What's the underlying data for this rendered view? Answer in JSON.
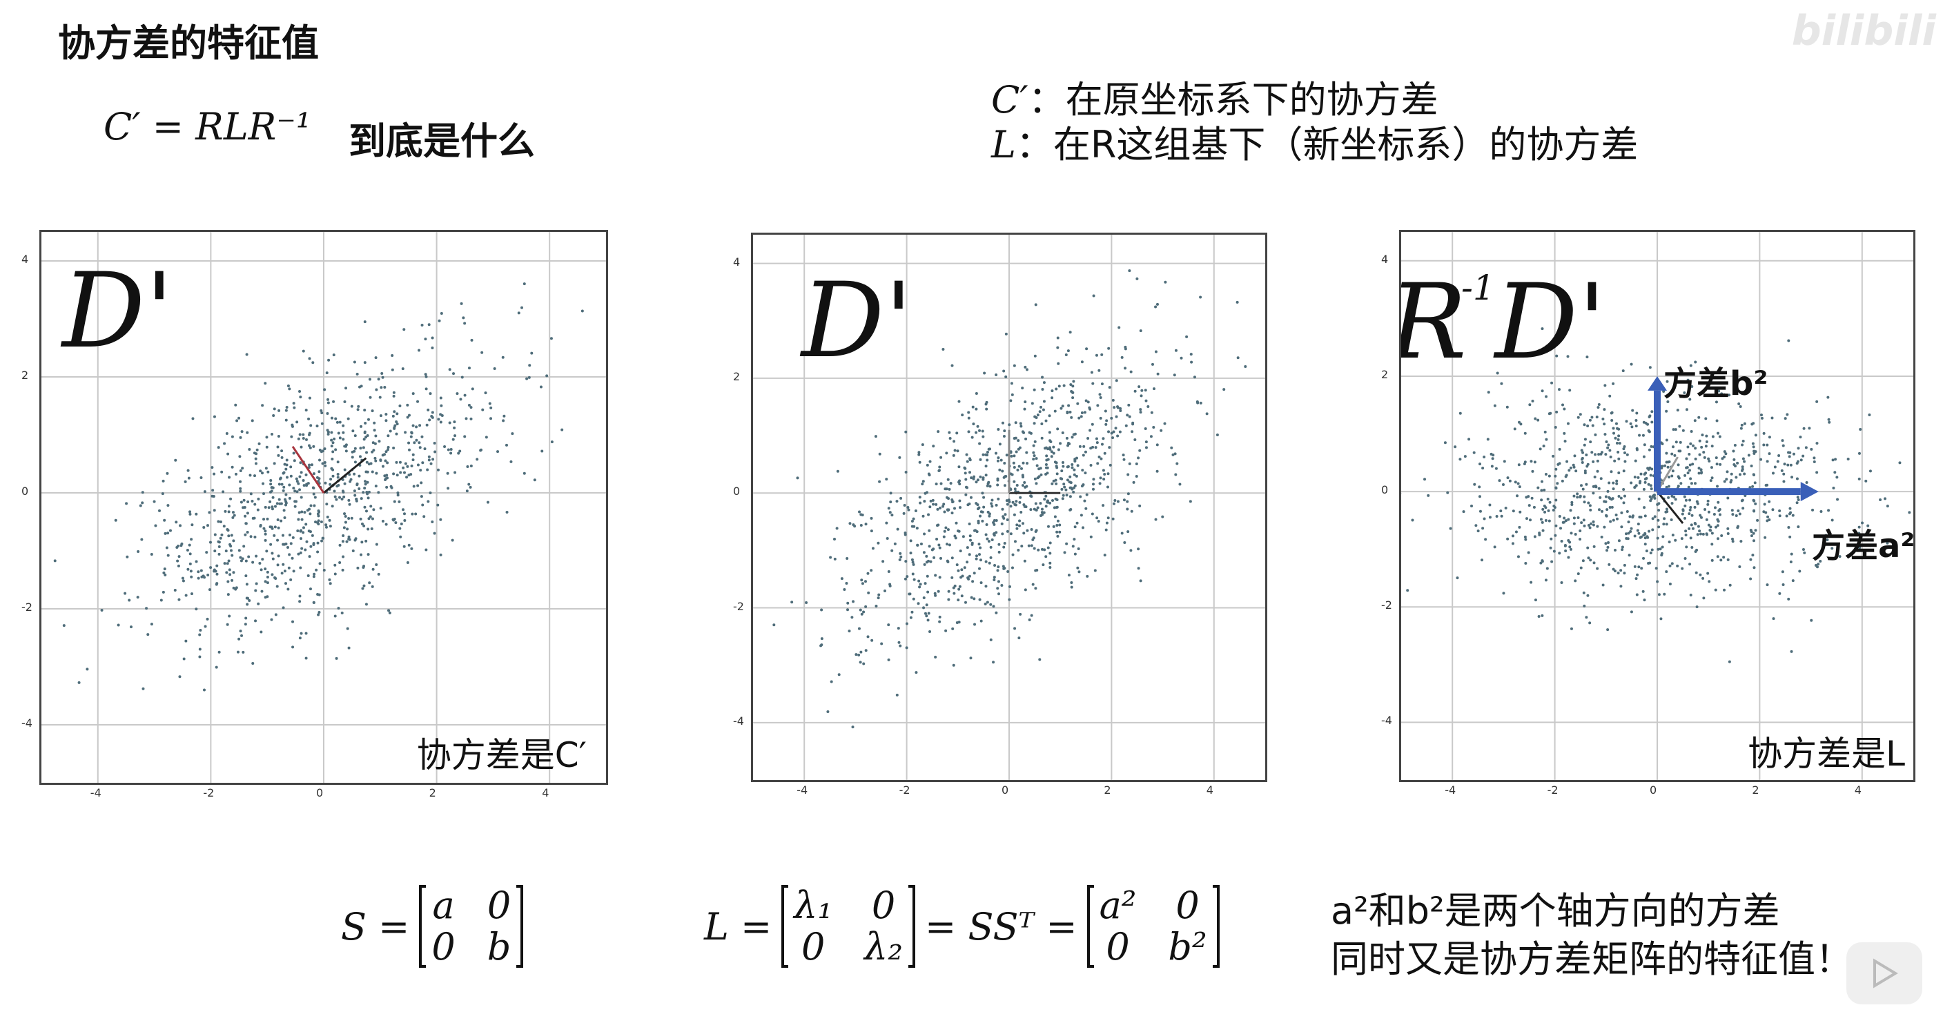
{
  "title": "协方差的特征值",
  "header": {
    "formula": "C′ = RLR⁻¹",
    "question": "到底是什么",
    "def_c_symbol": "C′",
    "def_c_text": "：在原坐标系下的协方差",
    "def_l_symbol": "L",
    "def_l_text": "：在R这组基下（新坐标系）的协方差"
  },
  "panels": [
    {
      "label": "D'",
      "caption": "协方差是C′"
    },
    {
      "label": "D'",
      "caption": ""
    },
    {
      "label_r": "R",
      "label_sup": "-1",
      "label_d": "D'",
      "caption": "协方差是L",
      "arrow_up_label": "方差b²",
      "arrow_right_label": "方差a²"
    }
  ],
  "axis_ticks": {
    "x": [
      "-4",
      "-2",
      "0",
      "2",
      "4"
    ],
    "y": [
      "4",
      "2",
      "0",
      "-2",
      "-4"
    ]
  },
  "bottom": {
    "s_lhs": "S =",
    "s_matrix": [
      "a",
      "0",
      "0",
      "b"
    ],
    "l_lhs": "L =",
    "l_matrix": [
      "λ₁",
      "0",
      "0",
      "λ₂"
    ],
    "l_mid": "= SSᵀ =",
    "l_matrix2": [
      "a²",
      "0",
      "0",
      "b²"
    ],
    "note_line1": "a²和b²是两个轴方向的方差",
    "note_line2": "同时又是协方差矩阵的特征值！"
  },
  "watermark": "bilibili",
  "colors": {
    "arrow": "#3a5fb8",
    "red_vec": "#a8343d",
    "dot": "#4f6d7a",
    "grid": "#c9c9c9"
  }
}
